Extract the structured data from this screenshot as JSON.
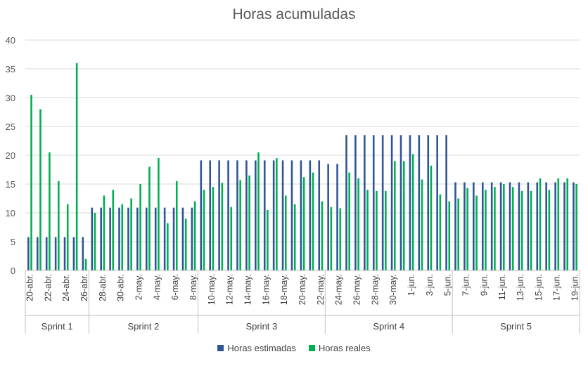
{
  "chart_data": {
    "type": "bar",
    "title": "Horas acumuladas",
    "xlabel": "",
    "ylabel": "",
    "ylim": [
      0,
      40
    ],
    "yticks": [
      0,
      5,
      10,
      15,
      20,
      25,
      30,
      35,
      40
    ],
    "grid": true,
    "legend_position": "bottom",
    "categories": [
      "20-abr.",
      "21-abr.",
      "22-abr.",
      "23-abr.",
      "24-abr.",
      "25-abr.",
      "26-abr.",
      "27-abr.",
      "28-abr.",
      "29-abr.",
      "30-abr.",
      "1-may.",
      "2-may.",
      "3-may.",
      "4-may.",
      "5-may.",
      "6-may.",
      "7-may.",
      "8-may.",
      "9-may.",
      "10-may.",
      "11-may.",
      "12-may.",
      "13-may.",
      "14-may.",
      "15-may.",
      "16-may.",
      "17-may.",
      "18-may.",
      "19-may.",
      "20-may.",
      "21-may.",
      "22-may.",
      "23-may.",
      "24-may.",
      "25-may.",
      "26-may.",
      "27-may.",
      "28-may.",
      "29-may.",
      "30-may.",
      "31-may.",
      "1-jun.",
      "2-jun.",
      "3-jun.",
      "4-jun.",
      "5-jun.",
      "6-jun.",
      "7-jun.",
      "8-jun.",
      "9-jun.",
      "10-jun.",
      "11-jun.",
      "12-jun.",
      "13-jun.",
      "14-jun.",
      "15-jun.",
      "16-jun.",
      "17-jun.",
      "18-jun.",
      "19-jun."
    ],
    "tick_labels_shown": [
      "20-abr.",
      "22-abr.",
      "24-abr.",
      "26-abr.",
      "28-abr.",
      "30-abr.",
      "2-may.",
      "4-may.",
      "6-may.",
      "8-may.",
      "10-may.",
      "12-may.",
      "14-may.",
      "16-may.",
      "18-may.",
      "20-may.",
      "22-may.",
      "24-may.",
      "26-may.",
      "28-may.",
      "30-may.",
      "1-jun.",
      "3-jun.",
      "5-jun.",
      "7-jun.",
      "9-jun.",
      "11-jun.",
      "13-jun.",
      "15-jun.",
      "17-jun.",
      "19-jun."
    ],
    "groups": [
      {
        "name": "Sprint 1",
        "start": 0,
        "end": 6
      },
      {
        "name": "Sprint 2",
        "start": 7,
        "end": 18
      },
      {
        "name": "Sprint 3",
        "start": 19,
        "end": 32
      },
      {
        "name": "Sprint 4",
        "start": 33,
        "end": 46
      },
      {
        "name": "Sprint 5",
        "start": 47,
        "end": 60
      }
    ],
    "series": [
      {
        "name": "Horas estimadas",
        "color": "#2f5597",
        "values": [
          5.8,
          5.8,
          5.8,
          5.8,
          5.8,
          5.8,
          5.8,
          10.9,
          10.9,
          10.9,
          10.9,
          10.9,
          10.9,
          10.9,
          10.9,
          10.9,
          10.9,
          10.9,
          10.9,
          19.1,
          19.1,
          19.1,
          19.1,
          19.1,
          19.1,
          19.1,
          19.1,
          19.1,
          19.1,
          19.1,
          19.1,
          19.1,
          19.1,
          18.5,
          18.5,
          23.5,
          23.5,
          23.5,
          23.5,
          23.5,
          23.5,
          23.5,
          23.5,
          23.5,
          23.5,
          23.5,
          23.5,
          15.3,
          15.3,
          15.3,
          15.3,
          15.3,
          15.3,
          15.3,
          15.3,
          15.3,
          15.3,
          15.3,
          15.3,
          15.3,
          15.3
        ]
      },
      {
        "name": "Horas reales",
        "color": "#00b050",
        "values": [
          30.5,
          28,
          20.5,
          15.5,
          11.5,
          36,
          2,
          10,
          13,
          14,
          11.5,
          12.5,
          15,
          18,
          19.5,
          8.2,
          15.5,
          9,
          12,
          14,
          14.5,
          15.2,
          11,
          15.7,
          16.5,
          20.5,
          10.5,
          19.5,
          13,
          11.5,
          16.2,
          17,
          12,
          11,
          10.8,
          17,
          16,
          14,
          13.8,
          13.8,
          19,
          19,
          20.2,
          15.8,
          18.2,
          13.2,
          12,
          12.5,
          14.3,
          13,
          14,
          14.5,
          15,
          14.5,
          13.8,
          13.8,
          16,
          14,
          16,
          16,
          15
        ]
      }
    ]
  }
}
